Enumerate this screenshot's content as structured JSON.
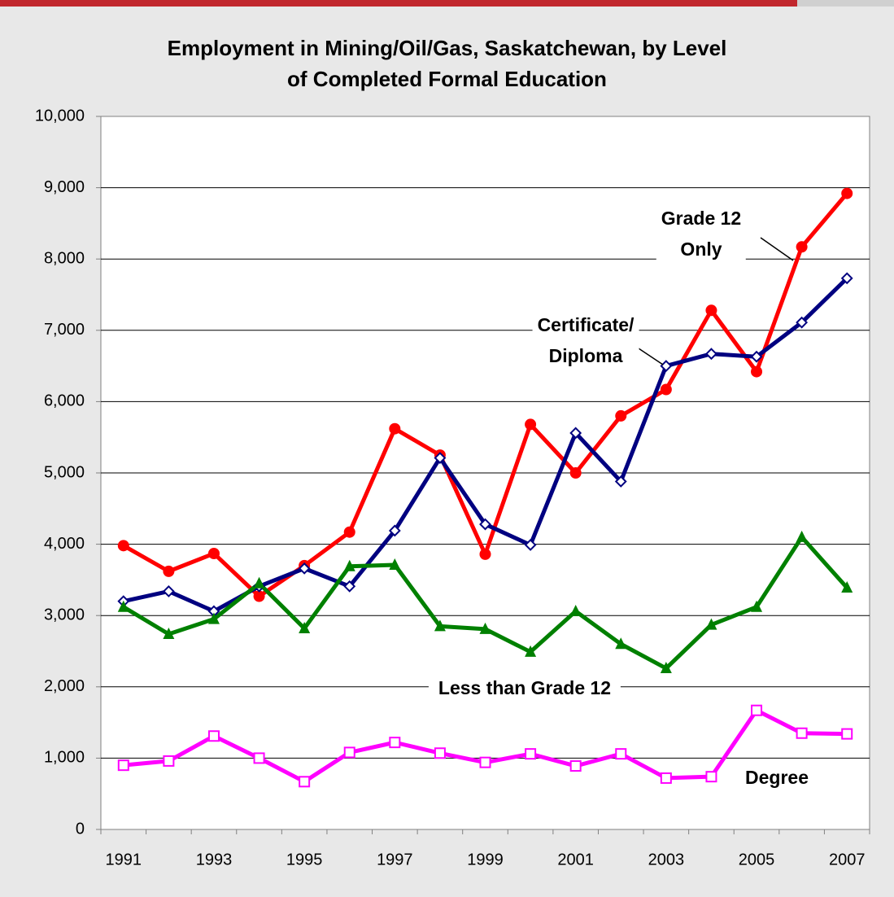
{
  "chart_data": {
    "type": "line",
    "title": "Employment in Mining/Oil/Gas, Saskatchewan, by Level\nof Completed Formal Education",
    "categories": [
      "1991",
      null,
      "1993",
      null,
      "1995",
      null,
      "1997",
      null,
      "1999",
      null,
      "2001",
      null,
      "2003",
      null,
      "2005",
      null,
      "2007"
    ],
    "series": [
      {
        "name": "Grade 12\nOnly",
        "color": "#ff0000",
        "marker": "circle",
        "values": [
          3980,
          3620,
          3870,
          3270,
          3700,
          4170,
          5620,
          5250,
          3860,
          5680,
          5000,
          5800,
          6170,
          7280,
          6420,
          8170,
          8920
        ]
      },
      {
        "name": "Certificate/\nDiploma",
        "color": "#000080",
        "marker": "diamond",
        "values": [
          3200,
          3340,
          3060,
          3410,
          3660,
          3410,
          4190,
          5210,
          4280,
          3990,
          5560,
          4880,
          6500,
          6670,
          6630,
          7110,
          7730
        ]
      },
      {
        "name": "Less than Grade 12",
        "color": "#008000",
        "marker": "triangle",
        "values": [
          3120,
          2740,
          2950,
          3450,
          2820,
          3690,
          3710,
          2850,
          2810,
          2490,
          3060,
          2600,
          2260,
          2870,
          3120,
          4100,
          3390
        ]
      },
      {
        "name": "Degree",
        "color": "#ff00ff",
        "marker": "square",
        "values": [
          900,
          960,
          1310,
          1000,
          670,
          1080,
          1220,
          1070,
          940,
          1060,
          890,
          1060,
          720,
          740,
          1670,
          1350,
          1340
        ]
      }
    ],
    "ylim": [
      0,
      10000
    ],
    "yticks": [
      0,
      {
        "value": 1000,
        "label": "1,000"
      },
      {
        "value": 2000,
        "label": "2,000"
      },
      {
        "value": 3000,
        "label": "3,000"
      },
      {
        "value": 4000,
        "label": "4,000"
      },
      {
        "value": 5000,
        "label": "5,000"
      },
      {
        "value": 6000,
        "label": "6,000"
      },
      {
        "value": 7000,
        "label": "7,000"
      },
      {
        "value": 8000,
        "label": "8,000"
      },
      {
        "value": 9000,
        "label": "9,000"
      },
      {
        "value": 10000,
        "label": "10,000"
      }
    ],
    "grid": true
  }
}
